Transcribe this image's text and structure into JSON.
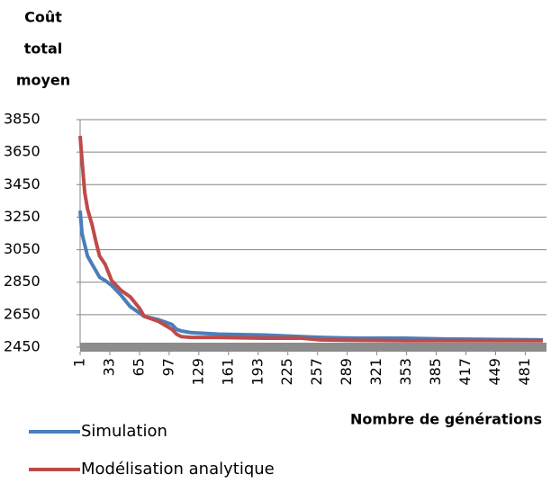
{
  "chart_data": {
    "type": "line",
    "y_label": [
      "Coût",
      "total",
      "moyen"
    ],
    "x_label": "Nombre de générations",
    "x": [
      1,
      3,
      6,
      9,
      14,
      18,
      22,
      28,
      35,
      45,
      55,
      65,
      70,
      85,
      100,
      105,
      110,
      120,
      150,
      200,
      240,
      260,
      300,
      350,
      400,
      500
    ],
    "series": [
      {
        "name": "Simulation",
        "color": "#4a7ebb",
        "values": [
          3290,
          3150,
          3080,
          3010,
          2960,
          2920,
          2880,
          2860,
          2830,
          2770,
          2700,
          2660,
          2640,
          2620,
          2590,
          2560,
          2550,
          2540,
          2530,
          2525,
          2515,
          2510,
          2505,
          2505,
          2500,
          2495
        ]
      },
      {
        "name": "Modélisation analytique",
        "color": "#be4b48",
        "values": [
          3750,
          3600,
          3400,
          3300,
          3200,
          3100,
          3010,
          2960,
          2860,
          2800,
          2760,
          2690,
          2640,
          2610,
          2560,
          2530,
          2515,
          2510,
          2510,
          2505,
          2505,
          2495,
          2492,
          2490,
          2490,
          2490
        ]
      }
    ],
    "xlim": [
      1,
      500
    ],
    "xticks": [
      1,
      33,
      65,
      97,
      129,
      161,
      193,
      225,
      257,
      289,
      321,
      353,
      385,
      417,
      449,
      481
    ],
    "ylim": [
      2450,
      3850
    ],
    "yticks": [
      2450,
      2650,
      2850,
      3050,
      3250,
      3450,
      3650,
      3850
    ],
    "grid": true
  }
}
